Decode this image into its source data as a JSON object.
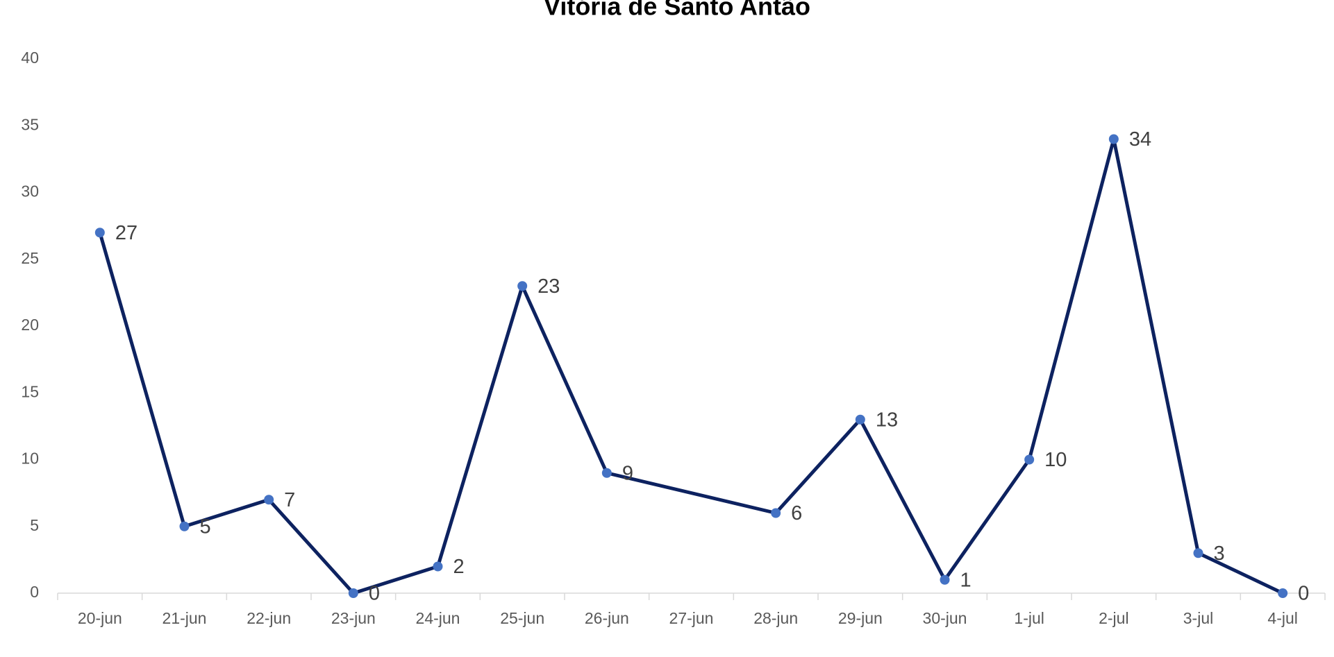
{
  "chart_data": {
    "type": "line",
    "title": "Vitória de Santo Antão",
    "categories": [
      "20-jun",
      "21-jun",
      "22-jun",
      "23-jun",
      "24-jun",
      "25-jun",
      "26-jun",
      "27-jun",
      "28-jun",
      "29-jun",
      "30-jun",
      "1-jul",
      "2-jul",
      "3-jul",
      "4-jul"
    ],
    "series": [
      {
        "name": "Vitória de Santo Antão",
        "line_color": "#0d2260",
        "color": "#4472c4",
        "values": [
          27,
          5,
          7,
          0,
          2,
          23,
          9,
          null,
          6,
          13,
          1,
          10,
          34,
          3,
          0
        ]
      }
    ],
    "span_gaps": true,
    "ylim": [
      0,
      40
    ],
    "yticks": [
      0,
      5,
      10,
      15,
      20,
      25,
      30,
      35,
      40
    ],
    "grid": false
  }
}
